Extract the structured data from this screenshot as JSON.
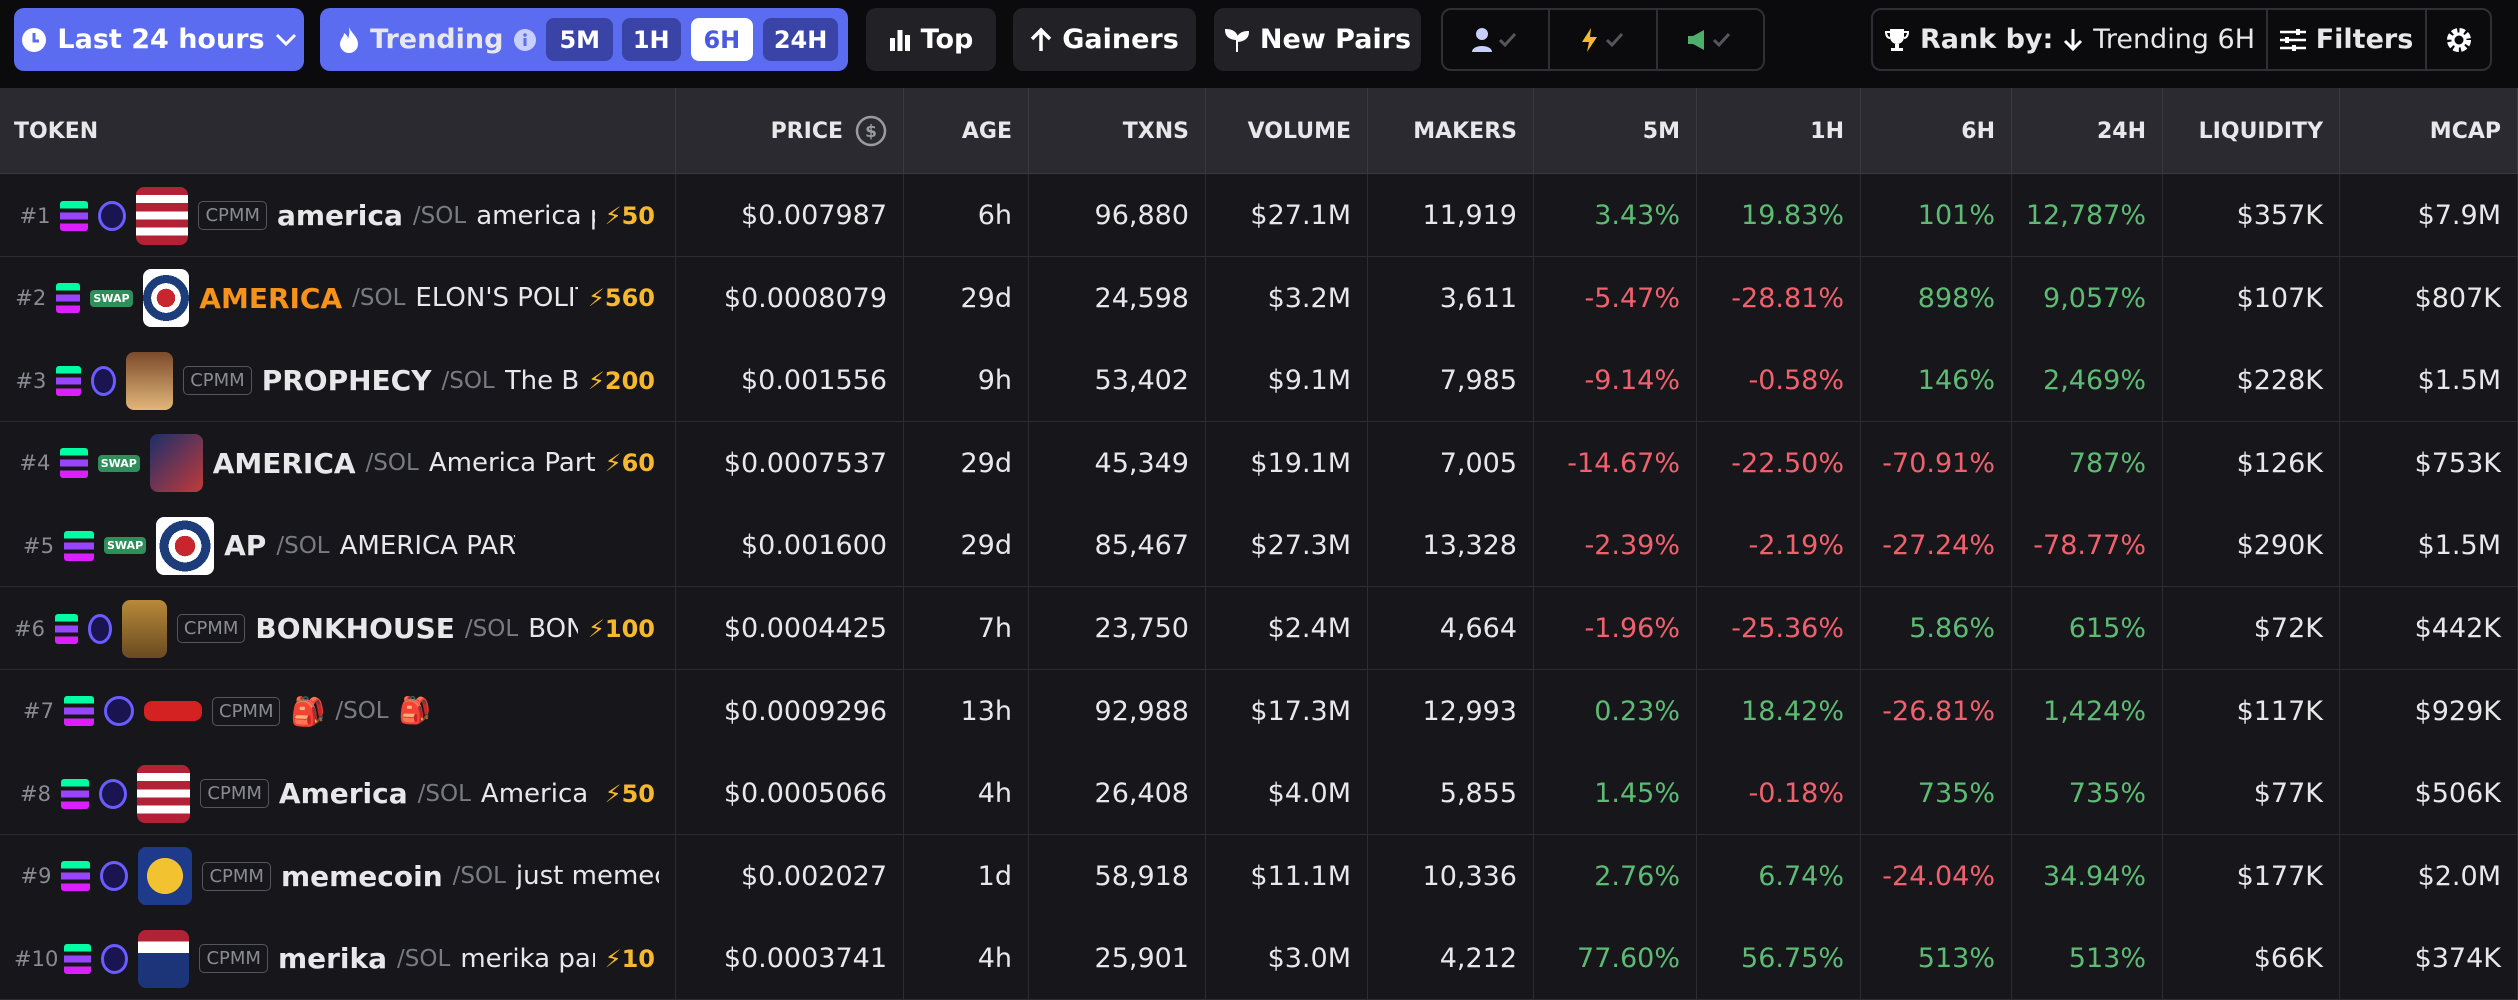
{
  "toolbar": {
    "range": "Last 24 hours",
    "trending": "Trending",
    "periods": [
      "5M",
      "1H",
      "6H",
      "24H"
    ],
    "active_period": 2,
    "top": "Top",
    "gainers": "Gainers",
    "new_pairs": "New Pairs",
    "rank_by": "Rank by:",
    "rank_value": "Trending 6H",
    "filters": "Filters"
  },
  "columns": [
    "TOKEN",
    "PRICE",
    "AGE",
    "TXNS",
    "VOLUME",
    "MAKERS",
    "5M",
    "1H",
    "6H",
    "24H",
    "LIQUIDITY",
    "MCAP"
  ],
  "rows": [
    {
      "rank": "#1",
      "dex": "CPMM",
      "symbol": "america",
      "quote": "/SOL",
      "name": "america p",
      "boost": 50,
      "cells": [
        "$0.007987",
        "6h",
        "96,880",
        "$27.1M",
        "11,919",
        "3.43%",
        "19.83%",
        "101%",
        "12,787%",
        "$357K",
        "$7.9M"
      ]
    },
    {
      "rank": "#2",
      "badge": "SWAP",
      "symbol": "AMERICA",
      "symbol_color": "#f7931a",
      "quote": "/SOL",
      "name": "ELON'S POLITIC",
      "boost": 560,
      "cells": [
        "$0.0008079",
        "29d",
        "24,598",
        "$3.2M",
        "3,611",
        "-5.47%",
        "-28.81%",
        "898%",
        "9,057%",
        "$107K",
        "$807K"
      ]
    },
    {
      "rank": "#3",
      "dex": "CPMM",
      "symbol": "PROPHECY",
      "quote": "/SOL",
      "name": "The Bo",
      "boost": 200,
      "cells": [
        "$0.001556",
        "9h",
        "53,402",
        "$9.1M",
        "7,985",
        "-9.14%",
        "-0.58%",
        "146%",
        "2,469%",
        "$228K",
        "$1.5M"
      ]
    },
    {
      "rank": "#4",
      "badge": "SWAP",
      "symbol": "AMERICA",
      "quote": "/SOL",
      "name": "America Party",
      "boost": 60,
      "cells": [
        "$0.0007537",
        "29d",
        "45,349",
        "$19.1M",
        "7,005",
        "-14.67%",
        "-22.50%",
        "-70.91%",
        "787%",
        "$126K",
        "$753K"
      ]
    },
    {
      "rank": "#5",
      "badge": "SWAP",
      "symbol": "AP",
      "quote": "/SOL",
      "name": "AMERICA PARTY",
      "cells": [
        "$0.001600",
        "29d",
        "85,467",
        "$27.3M",
        "13,328",
        "-2.39%",
        "-2.19%",
        "-27.24%",
        "-78.77%",
        "$290K",
        "$1.5M"
      ]
    },
    {
      "rank": "#6",
      "dex": "CPMM",
      "symbol": "BONKHOUSE",
      "quote": "/SOL",
      "name": "BONI",
      "boost": 100,
      "cells": [
        "$0.0004425",
        "7h",
        "23,750",
        "$2.4M",
        "4,664",
        "-1.96%",
        "-25.36%",
        "5.86%",
        "615%",
        "$72K",
        "$442K"
      ]
    },
    {
      "rank": "#7",
      "dex": "CPMM",
      "symbol": "🎒",
      "quote": "/SOL",
      "name": "🎒",
      "cells": [
        "$0.0009296",
        "13h",
        "92,988",
        "$17.3M",
        "12,993",
        "0.23%",
        "18.42%",
        "-26.81%",
        "1,424%",
        "$117K",
        "$929K"
      ]
    },
    {
      "rank": "#8",
      "dex": "CPMM",
      "symbol": "America",
      "quote": "/SOL",
      "name": "America I",
      "boost": 50,
      "cells": [
        "$0.0005066",
        "4h",
        "26,408",
        "$4.0M",
        "5,855",
        "1.45%",
        "-0.18%",
        "735%",
        "735%",
        "$77K",
        "$506K"
      ]
    },
    {
      "rank": "#9",
      "dex": "CPMM",
      "symbol": "memecoin",
      "quote": "/SOL",
      "name": "just memec",
      "cells": [
        "$0.002027",
        "1d",
        "58,918",
        "$11.1M",
        "10,336",
        "2.76%",
        "6.74%",
        "-24.04%",
        "34.94%",
        "$177K",
        "$2.0M"
      ]
    },
    {
      "rank": "#10",
      "dex": "CPMM",
      "symbol": "merika",
      "quote": "/SOL",
      "name": "merika part",
      "boost": 10,
      "cells": [
        "$0.0003741",
        "4h",
        "25,901",
        "$3.0M",
        "4,212",
        "77.60%",
        "56.75%",
        "513%",
        "513%",
        "$66K",
        "$374K"
      ]
    }
  ]
}
